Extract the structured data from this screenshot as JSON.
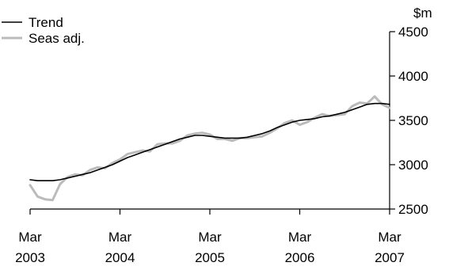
{
  "chart_data": {
    "type": "line",
    "title": "",
    "xlabel": "",
    "ylabel": "$m",
    "ylim": [
      2500,
      4500
    ],
    "yticks": [
      2500,
      3000,
      3500,
      4000,
      4500
    ],
    "x_range": [
      "2003-03",
      "2007-03"
    ],
    "x_tick_labels": [
      {
        "month": "Mar",
        "year": "2003"
      },
      {
        "month": "Mar",
        "year": "2004"
      },
      {
        "month": "Mar",
        "year": "2005"
      },
      {
        "month": "Mar",
        "year": "2006"
      },
      {
        "month": "Mar",
        "year": "2007"
      }
    ],
    "grid": false,
    "legend_position": "top-left",
    "x": [
      "2003-03",
      "2003-04",
      "2003-05",
      "2003-06",
      "2003-07",
      "2003-08",
      "2003-09",
      "2003-10",
      "2003-11",
      "2003-12",
      "2004-01",
      "2004-02",
      "2004-03",
      "2004-04",
      "2004-05",
      "2004-06",
      "2004-07",
      "2004-08",
      "2004-09",
      "2004-10",
      "2004-11",
      "2004-12",
      "2005-01",
      "2005-02",
      "2005-03",
      "2005-04",
      "2005-05",
      "2005-06",
      "2005-07",
      "2005-08",
      "2005-09",
      "2005-10",
      "2005-11",
      "2005-12",
      "2006-01",
      "2006-02",
      "2006-03",
      "2006-04",
      "2006-05",
      "2006-06",
      "2006-07",
      "2006-08",
      "2006-09",
      "2006-10",
      "2006-11",
      "2006-12",
      "2007-01",
      "2007-02",
      "2007-03"
    ],
    "series": [
      {
        "name": "Trend",
        "color": "#000000",
        "values": [
          2830,
          2820,
          2820,
          2820,
          2830,
          2850,
          2870,
          2890,
          2910,
          2940,
          2970,
          3000,
          3040,
          3080,
          3110,
          3140,
          3170,
          3200,
          3230,
          3260,
          3290,
          3310,
          3330,
          3330,
          3320,
          3310,
          3300,
          3300,
          3300,
          3310,
          3330,
          3350,
          3380,
          3420,
          3450,
          3480,
          3500,
          3510,
          3520,
          3540,
          3550,
          3570,
          3590,
          3620,
          3650,
          3680,
          3690,
          3690,
          3680
        ]
      },
      {
        "name": "Seas adj.",
        "color": "#bbbbbb",
        "values": [
          2770,
          2640,
          2610,
          2600,
          2780,
          2860,
          2890,
          2880,
          2940,
          2970,
          2960,
          3020,
          3060,
          3120,
          3140,
          3160,
          3150,
          3230,
          3240,
          3240,
          3270,
          3330,
          3350,
          3360,
          3340,
          3290,
          3290,
          3270,
          3300,
          3300,
          3310,
          3320,
          3360,
          3410,
          3470,
          3500,
          3450,
          3480,
          3530,
          3570,
          3550,
          3560,
          3570,
          3660,
          3700,
          3690,
          3770,
          3680,
          3640
        ]
      }
    ]
  }
}
